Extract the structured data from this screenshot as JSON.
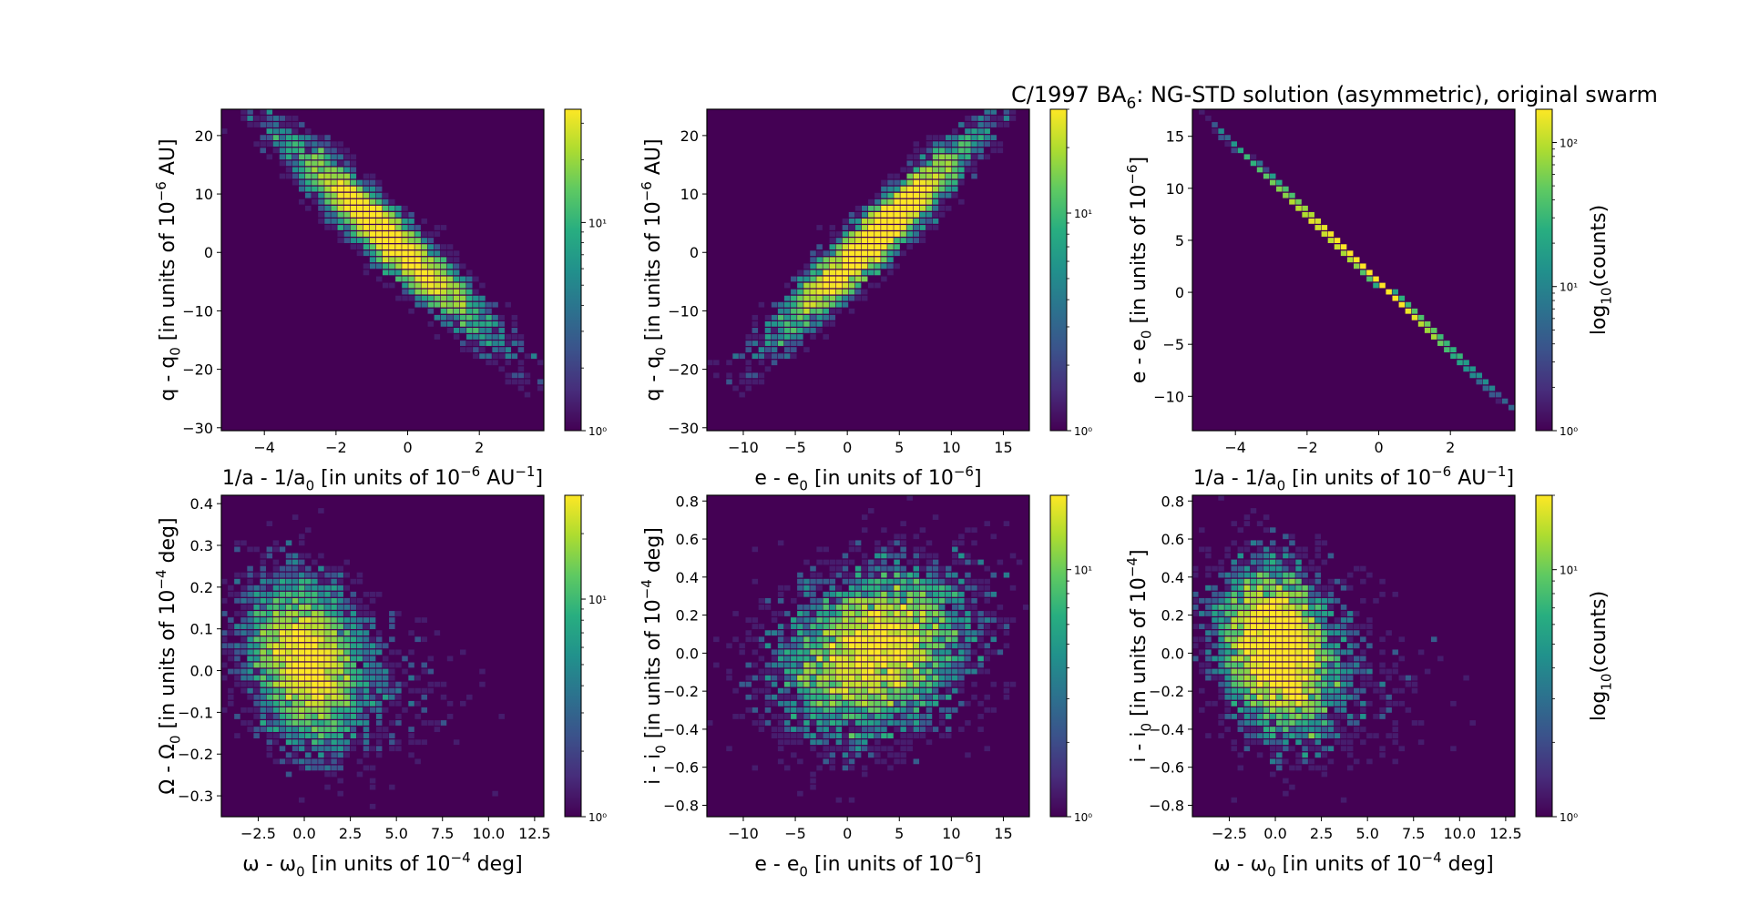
{
  "figure": {
    "title_prefix": "C/1997 BA",
    "title_subscript": "6",
    "title_suffix": ": NG-STD solution (asymmetric), original swarm"
  },
  "colormap": [
    "#440154",
    "#472d7b",
    "#3b528b",
    "#2c728e",
    "#21918c",
    "#28ae80",
    "#5ec962",
    "#addc30",
    "#fde725"
  ],
  "chart_data": [
    {
      "type": "heatmap",
      "x_param": "invA",
      "y_param": "q",
      "xlabel": "1/a - 1/a<sub>0</sub> [in units of 10<sup>−6</sup> AU<sup>−1</sup>]",
      "ylabel": "q - q<sub>0</sub> [in units of 10<sup>−6</sup> AU]",
      "xlim": [
        -5.2,
        3.8
      ],
      "ylim": [
        -30.5,
        24.5
      ],
      "xticks": [
        -4,
        -2,
        0,
        2
      ],
      "yticks": [
        -30,
        -20,
        -10,
        0,
        10,
        20
      ],
      "colorbar": {
        "scale": "log",
        "range": [
          1,
          35
        ],
        "label": "",
        "major_ticks": [
          1,
          10
        ],
        "tick_labels": [
          "10⁰",
          "10¹"
        ]
      }
    },
    {
      "type": "heatmap",
      "x_param": "e",
      "y_param": "q",
      "xlabel": "e - e<sub>0</sub> [in units of 10<sup>−6</sup>]",
      "ylabel": "q - q<sub>0</sub> [in units of 10<sup>−6</sup> AU]",
      "xlim": [
        -13.5,
        17.5
      ],
      "ylim": [
        -30.5,
        24.5
      ],
      "xticks": [
        -10,
        -5,
        0,
        5,
        10,
        15
      ],
      "yticks": [
        -30,
        -20,
        -10,
        0,
        10,
        20
      ],
      "colorbar": {
        "scale": "log",
        "range": [
          1,
          30
        ],
        "label": "",
        "major_ticks": [
          1,
          10
        ],
        "tick_labels": [
          "10⁰",
          "10¹"
        ]
      }
    },
    {
      "type": "heatmap",
      "x_param": "invA",
      "y_param": "e",
      "xlabel": "1/a - 1/a<sub>0</sub> [in units of 10<sup>−6</sup> AU<sup>−1</sup>]",
      "ylabel": "e - e<sub>0</sub> [in units of 10<sup>−6</sup>]",
      "xlim": [
        -5.2,
        3.8
      ],
      "ylim": [
        -13.3,
        17.6
      ],
      "xticks": [
        -4,
        -2,
        0,
        2
      ],
      "yticks": [
        -10,
        -5,
        0,
        5,
        10,
        15
      ],
      "colorbar": {
        "scale": "log",
        "range": [
          1,
          170
        ],
        "label": "log<sub>10</sub>(counts)",
        "major_ticks": [
          1,
          10,
          100
        ],
        "tick_labels": [
          "10⁰",
          "10¹",
          "10²"
        ]
      }
    },
    {
      "type": "heatmap",
      "x_param": "w",
      "y_param": "node",
      "xlabel": "ω - ω<sub>0</sub> [in units of 10<sup>−4</sup> deg]",
      "ylabel": "Ω - Ω<sub>0</sub> [in units of 10<sup>−4</sup> deg]",
      "xlim": [
        -4.5,
        13.0
      ],
      "ylim": [
        -0.35,
        0.42
      ],
      "xticks": [
        -2.5,
        0.0,
        2.5,
        5.0,
        7.5,
        10.0,
        12.5
      ],
      "yticks": [
        -0.3,
        -0.2,
        -0.1,
        0.0,
        0.1,
        0.2,
        0.3,
        0.4
      ],
      "xtick_labels": [
        "−2.5",
        "0.0",
        "2.5",
        "5.0",
        "7.5",
        "10.0",
        "12.5"
      ],
      "ytick_labels": [
        "−0.3",
        "−0.2",
        "−0.1",
        "0.0",
        "0.1",
        "0.2",
        "0.3",
        "0.4"
      ],
      "colorbar": {
        "scale": "log",
        "range": [
          1,
          30
        ],
        "label": "",
        "major_ticks": [
          1,
          10
        ],
        "tick_labels": [
          "10⁰",
          "10¹"
        ]
      }
    },
    {
      "type": "heatmap",
      "x_param": "e",
      "y_param": "i",
      "xlabel": "e - e<sub>0</sub> [in units of 10<sup>−6</sup>]",
      "ylabel": "i - i<sub>0</sub> [in units of 10<sup>−4</sup> deg]",
      "xlim": [
        -13.5,
        17.5
      ],
      "ylim": [
        -0.86,
        0.83
      ],
      "xticks": [
        -10,
        -5,
        0,
        5,
        10,
        15
      ],
      "yticks": [
        -0.8,
        -0.6,
        -0.4,
        -0.2,
        0.0,
        0.2,
        0.4,
        0.6,
        0.8
      ],
      "ytick_labels": [
        "−0.8",
        "−0.6",
        "−0.4",
        "−0.2",
        "0.0",
        "0.2",
        "0.4",
        "0.6",
        "0.8"
      ],
      "colorbar": {
        "scale": "log",
        "range": [
          1,
          20
        ],
        "label": "",
        "major_ticks": [
          1,
          10
        ],
        "tick_labels": [
          "10⁰",
          "10¹"
        ]
      }
    },
    {
      "type": "heatmap",
      "x_param": "w",
      "y_param": "i",
      "xlabel": "ω - ω<sub>0</sub> [in units of 10<sup>−4</sup> deg]",
      "ylabel": "i - i<sub>0</sub> [in units of 10<sup>−4</sup>]",
      "xlim": [
        -4.5,
        13.0
      ],
      "ylim": [
        -0.86,
        0.83
      ],
      "xticks": [
        -2.5,
        0.0,
        2.5,
        5.0,
        7.5,
        10.0,
        12.5
      ],
      "yticks": [
        -0.8,
        -0.6,
        -0.4,
        -0.2,
        0.0,
        0.2,
        0.4,
        0.6,
        0.8
      ],
      "xtick_labels": [
        "−2.5",
        "0.0",
        "2.5",
        "5.0",
        "7.5",
        "10.0",
        "12.5"
      ],
      "ytick_labels": [
        "−0.8",
        "−0.6",
        "−0.4",
        "−0.2",
        "0.0",
        "0.2",
        "0.4",
        "0.6",
        "0.8"
      ],
      "colorbar": {
        "scale": "log",
        "range": [
          1,
          20
        ],
        "label": "log<sub>10</sub>(counts)",
        "major_ticks": [
          1,
          10
        ],
        "tick_labels": [
          "10⁰",
          "10¹"
        ]
      }
    }
  ]
}
